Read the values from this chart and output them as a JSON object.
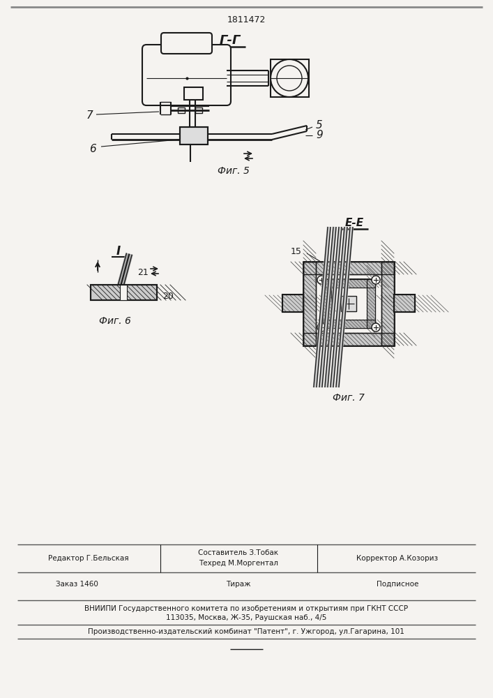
{
  "patent_number": "1811472",
  "bg_color": "#f5f3f0",
  "line_color": "#1a1a1a",
  "hatch_color": "#444444",
  "section_label_gg": "Г-Г",
  "section_label_ee": "Е-Е",
  "fig5_label": "Фиг. 5",
  "fig6_label": "Фиг. 6",
  "fig7_label": "Фиг. 7",
  "fig6_num_I": "I",
  "fig6_num_21": "21",
  "fig6_num_20": "20",
  "fig5_num_7": "7",
  "fig5_num_5": "5",
  "fig5_num_9": "9",
  "fig5_num_6": "6",
  "fig7_num_15": "15",
  "footer_line1_col1": "Редактор Г.Бельская",
  "footer_col2_line1": "Составитель З.Тобак",
  "footer_col2_line2": "Техред М.Моргентал",
  "footer_line1_col3": "Корректор А.Козориз",
  "footer_order": "Заказ 1460",
  "footer_tirazh": "Тираж",
  "footer_podpisnoe": "Подписное",
  "footer_line3": "ВНИИПИ Государственного комитета по изобретениям и открытиям при ГКНТ СССР",
  "footer_line4": "113035, Москва, Ж-35, Раушская наб., 4/5",
  "footer_line5": "Производственно-издательский комбинат \"Патент\", г. Ужгород, ул.Гагарина, 101",
  "top_border_color": "#888888",
  "footer_border_color": "#555555"
}
